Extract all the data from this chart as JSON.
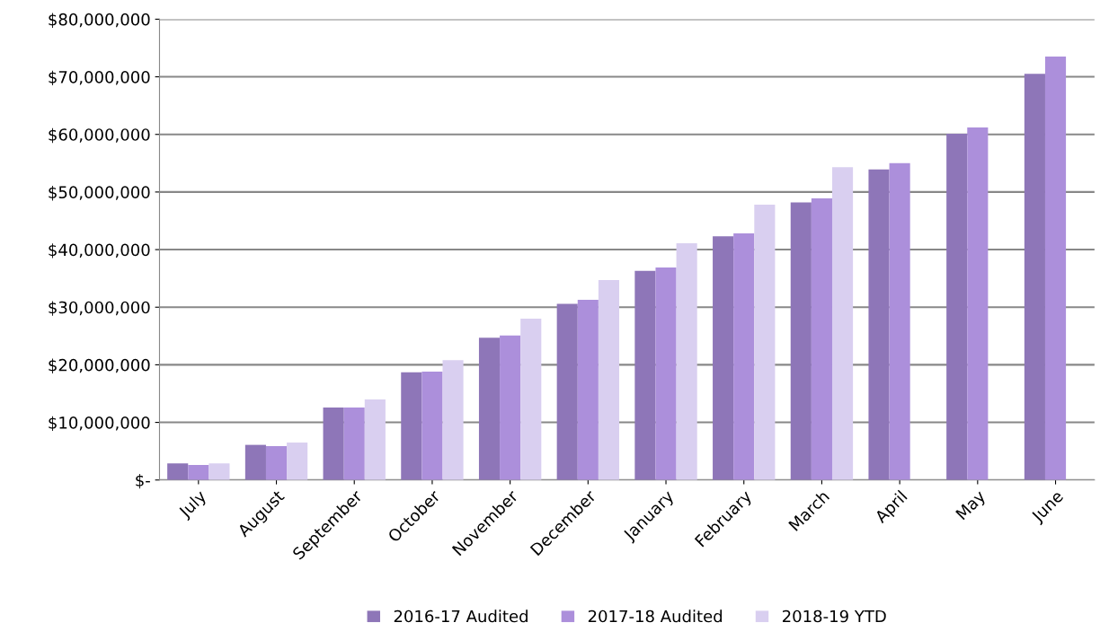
{
  "chart_data": {
    "type": "bar",
    "categories": [
      "July",
      "August",
      "September",
      "October",
      "November",
      "December",
      "January",
      "February",
      "March",
      "April",
      "May",
      "June"
    ],
    "series": [
      {
        "name": "2016-17 Audited",
        "color": "#8e76b8",
        "values": [
          2900000,
          6100000,
          12600000,
          18700000,
          24700000,
          30600000,
          36300000,
          42300000,
          48200000,
          53900000,
          60100000,
          70500000
        ]
      },
      {
        "name": "2017-18 Audited",
        "color": "#ac8fdb",
        "values": [
          2600000,
          5900000,
          12600000,
          18800000,
          25100000,
          31300000,
          36900000,
          42800000,
          48900000,
          55000000,
          61200000,
          73500000
        ]
      },
      {
        "name": "2018-19 YTD",
        "color": "#d9cff0",
        "values": [
          2900000,
          6500000,
          14000000,
          20800000,
          28000000,
          34700000,
          41100000,
          47800000,
          54300000,
          null,
          null,
          null
        ]
      }
    ],
    "ylim": [
      0,
      80000000
    ],
    "yticks": [
      {
        "value": 0,
        "label": "$-"
      },
      {
        "value": 10000000,
        "label": "$10,000,000"
      },
      {
        "value": 20000000,
        "label": "$20,000,000"
      },
      {
        "value": 30000000,
        "label": "$30,000,000"
      },
      {
        "value": 40000000,
        "label": "$40,000,000"
      },
      {
        "value": 50000000,
        "label": "$50,000,000"
      },
      {
        "value": 60000000,
        "label": "$60,000,000"
      },
      {
        "value": 70000000,
        "label": "$70,000,000"
      },
      {
        "value": 80000000,
        "label": "$80,000,000"
      }
    ],
    "grid": "y",
    "legend": "bottom"
  }
}
